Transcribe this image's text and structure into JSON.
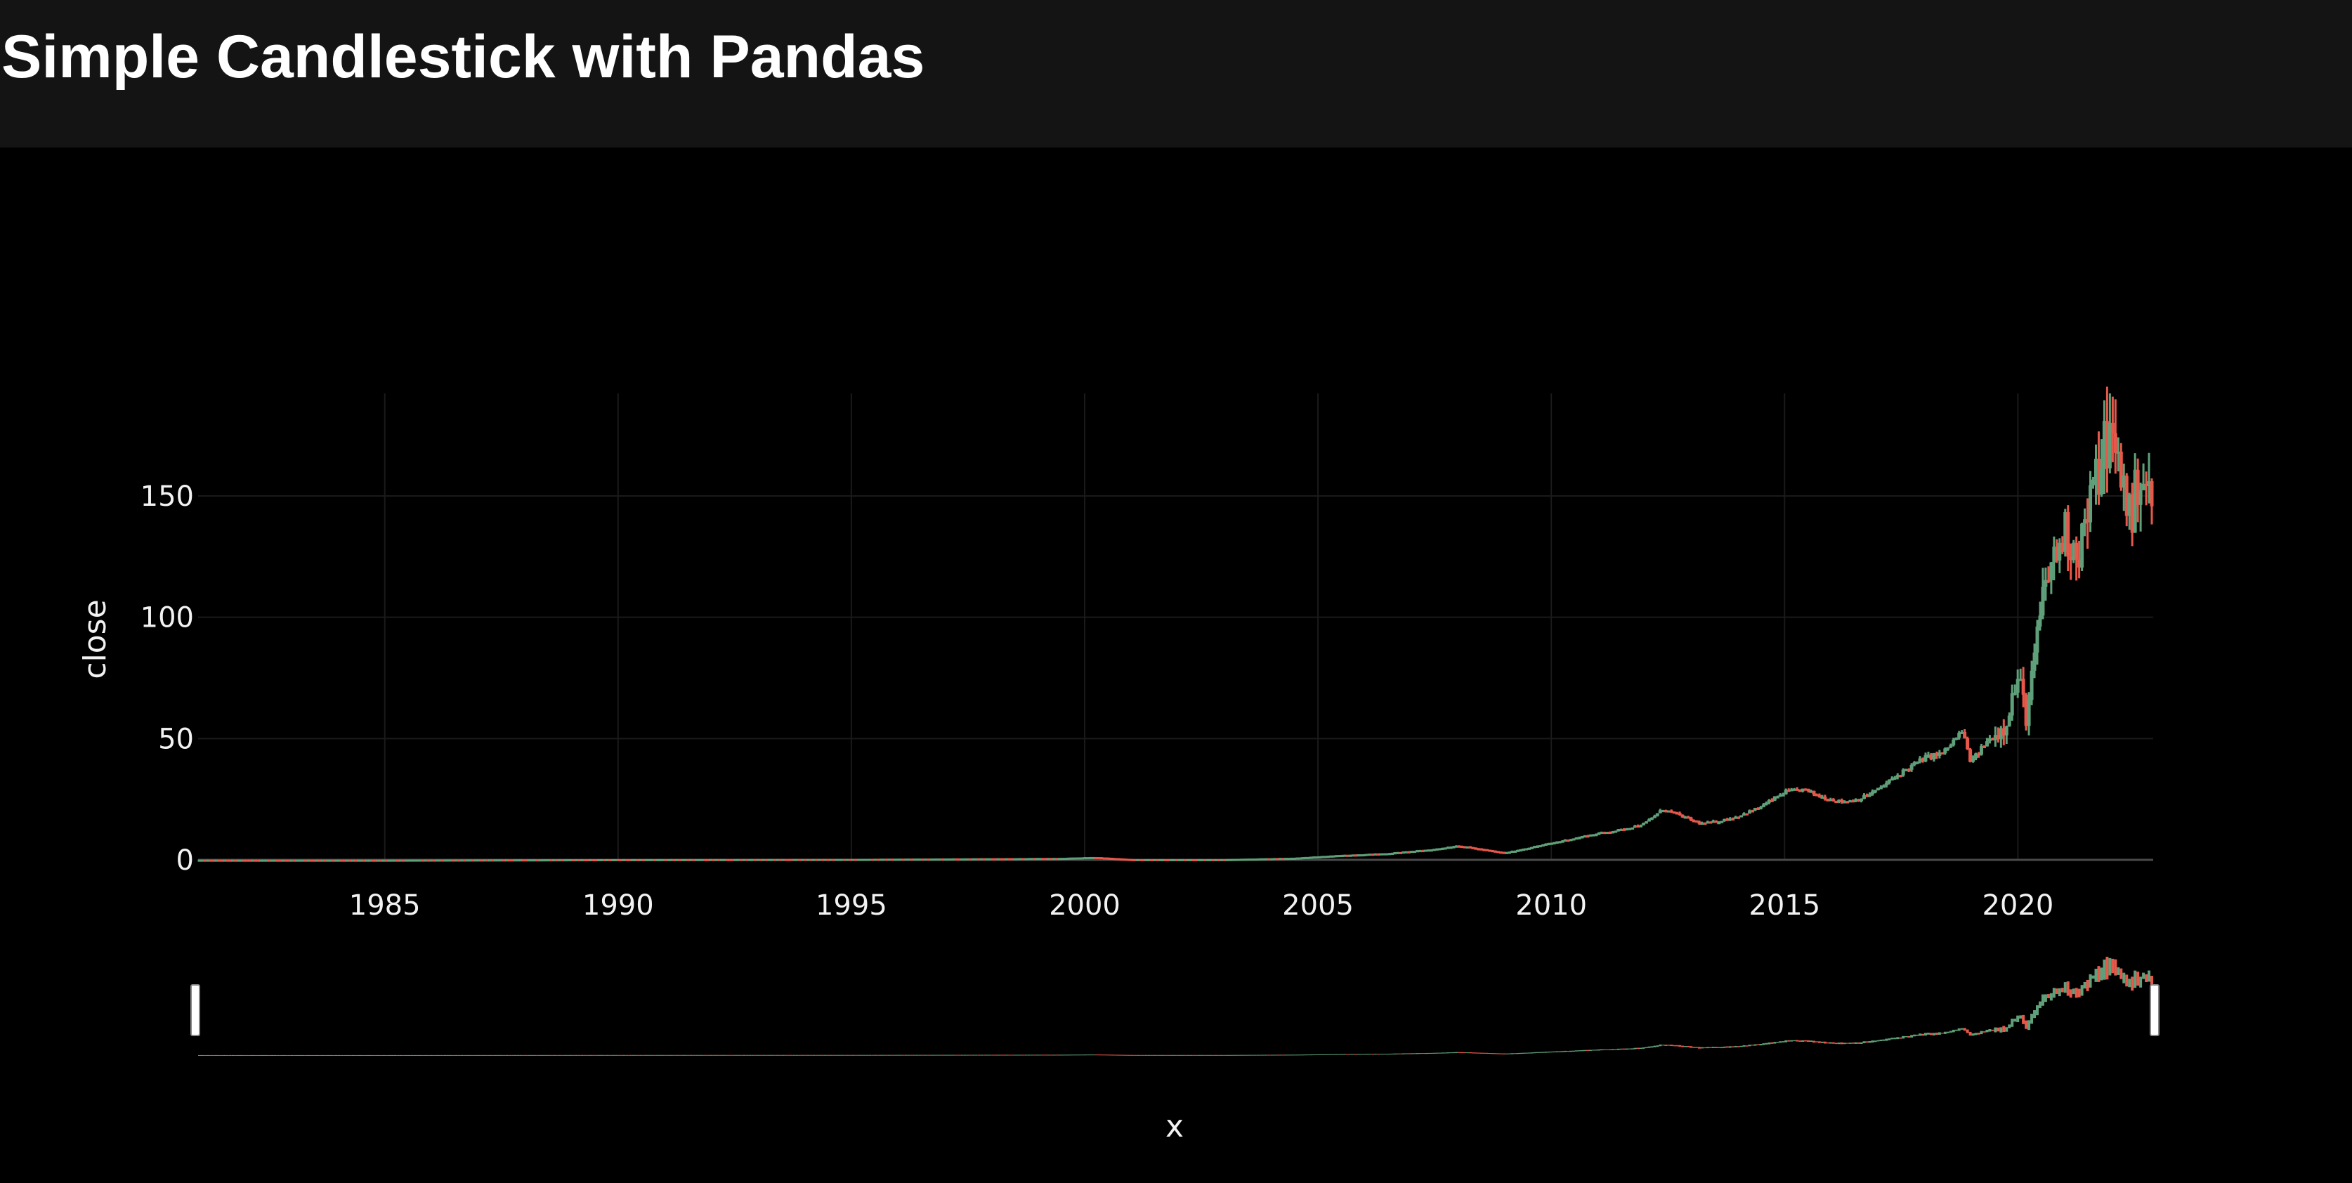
{
  "header": {
    "title": "Simple Candlestick with Pandas"
  },
  "chart_data": {
    "type": "candlestick",
    "title": "Simple Candlestick with Pandas",
    "xlabel": "x",
    "ylabel": "close",
    "x_range": [
      1981.0,
      2022.9
    ],
    "ylim": [
      -5,
      200
    ],
    "x_ticks": [
      1985,
      1990,
      1995,
      2000,
      2005,
      2010,
      2015,
      2020
    ],
    "y_ticks": [
      0,
      50,
      100,
      150
    ],
    "x_tick_labels": [
      "1985",
      "1990",
      "1995",
      "2000",
      "2005",
      "2010",
      "2015",
      "2020"
    ],
    "y_tick_labels": [
      "0",
      "50",
      "100",
      "150"
    ],
    "grid": true,
    "rangeslider": true,
    "increasing_color": "#5fa07a",
    "decreasing_color": "#e8584a",
    "background_color": "#000000",
    "header_color": "#141414",
    "approx_close_series": {
      "x": [
        1981.0,
        1985.0,
        1990.0,
        1995.0,
        1999.5,
        2000.2,
        2001.0,
        2003.0,
        2004.5,
        2005.5,
        2006.5,
        2007.5,
        2008.0,
        2008.5,
        2009.0,
        2009.5,
        2010.0,
        2010.5,
        2011.0,
        2011.5,
        2012.0,
        2012.4,
        2012.8,
        2013.2,
        2013.6,
        2014.0,
        2014.5,
        2015.0,
        2015.4,
        2015.8,
        2016.2,
        2016.6,
        2017.0,
        2017.5,
        2018.0,
        2018.4,
        2018.8,
        2019.0,
        2019.3,
        2019.7,
        2020.0,
        2020.2,
        2020.4,
        2020.6,
        2020.8,
        2021.0,
        2021.3,
        2021.6,
        2021.9,
        2022.0,
        2022.2,
        2022.45,
        2022.6,
        2022.75,
        2022.9
      ],
      "close": [
        0.1,
        0.1,
        0.3,
        0.4,
        0.8,
        1.2,
        0.3,
        0.3,
        0.9,
        2.0,
        2.8,
        4.5,
        6.0,
        4.5,
        3.0,
        5.0,
        7.0,
        9.0,
        11.0,
        12.5,
        15.0,
        21.0,
        18.0,
        15.0,
        16.0,
        18.0,
        22.0,
        28.0,
        29.0,
        26.0,
        24.0,
        25.0,
        29.0,
        36.0,
        42.0,
        44.0,
        53.0,
        40.0,
        48.0,
        55.0,
        75.0,
        58.0,
        90.0,
        115.0,
        125.0,
        135.0,
        128.0,
        150.0,
        175.0,
        172.0,
        160.0,
        140.0,
        162.0,
        155.0,
        140.0
      ]
    }
  }
}
